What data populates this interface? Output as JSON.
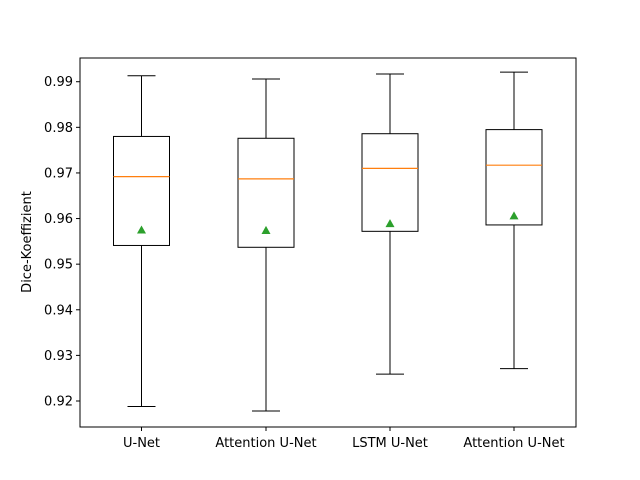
{
  "chart_data": {
    "type": "box",
    "title": "",
    "xlabel": "",
    "ylabel": "Dice-Koeffizient",
    "ylim": [
      0.9143,
      0.9952
    ],
    "yticks": [
      0.92,
      0.93,
      0.94,
      0.95,
      0.96,
      0.97,
      0.98,
      0.99
    ],
    "ytick_labels": [
      "0.92",
      "0.93",
      "0.94",
      "0.95",
      "0.96",
      "0.97",
      "0.98",
      "0.99"
    ],
    "categories": [
      "U-Net",
      "Attention U-Net",
      "LSTM U-Net",
      "Attention U-Net"
    ],
    "boxes": [
      {
        "whisker_low": 0.9188,
        "q1": 0.9541,
        "median": 0.9692,
        "q3": 0.978,
        "whisker_high": 0.9913,
        "mean": 0.9575
      },
      {
        "whisker_low": 0.9178,
        "q1": 0.9537,
        "median": 0.9687,
        "q3": 0.9776,
        "whisker_high": 0.9906,
        "mean": 0.9574
      },
      {
        "whisker_low": 0.9259,
        "q1": 0.9572,
        "median": 0.971,
        "q3": 0.9786,
        "whisker_high": 0.9917,
        "mean": 0.9589
      },
      {
        "whisker_low": 0.9271,
        "q1": 0.9586,
        "median": 0.9717,
        "q3": 0.9795,
        "whisker_high": 0.9921,
        "mean": 0.9606
      }
    ],
    "colors": {
      "box": "#000000",
      "median": "#ff7f0e",
      "mean": "#2ca02c"
    },
    "grid": false
  }
}
